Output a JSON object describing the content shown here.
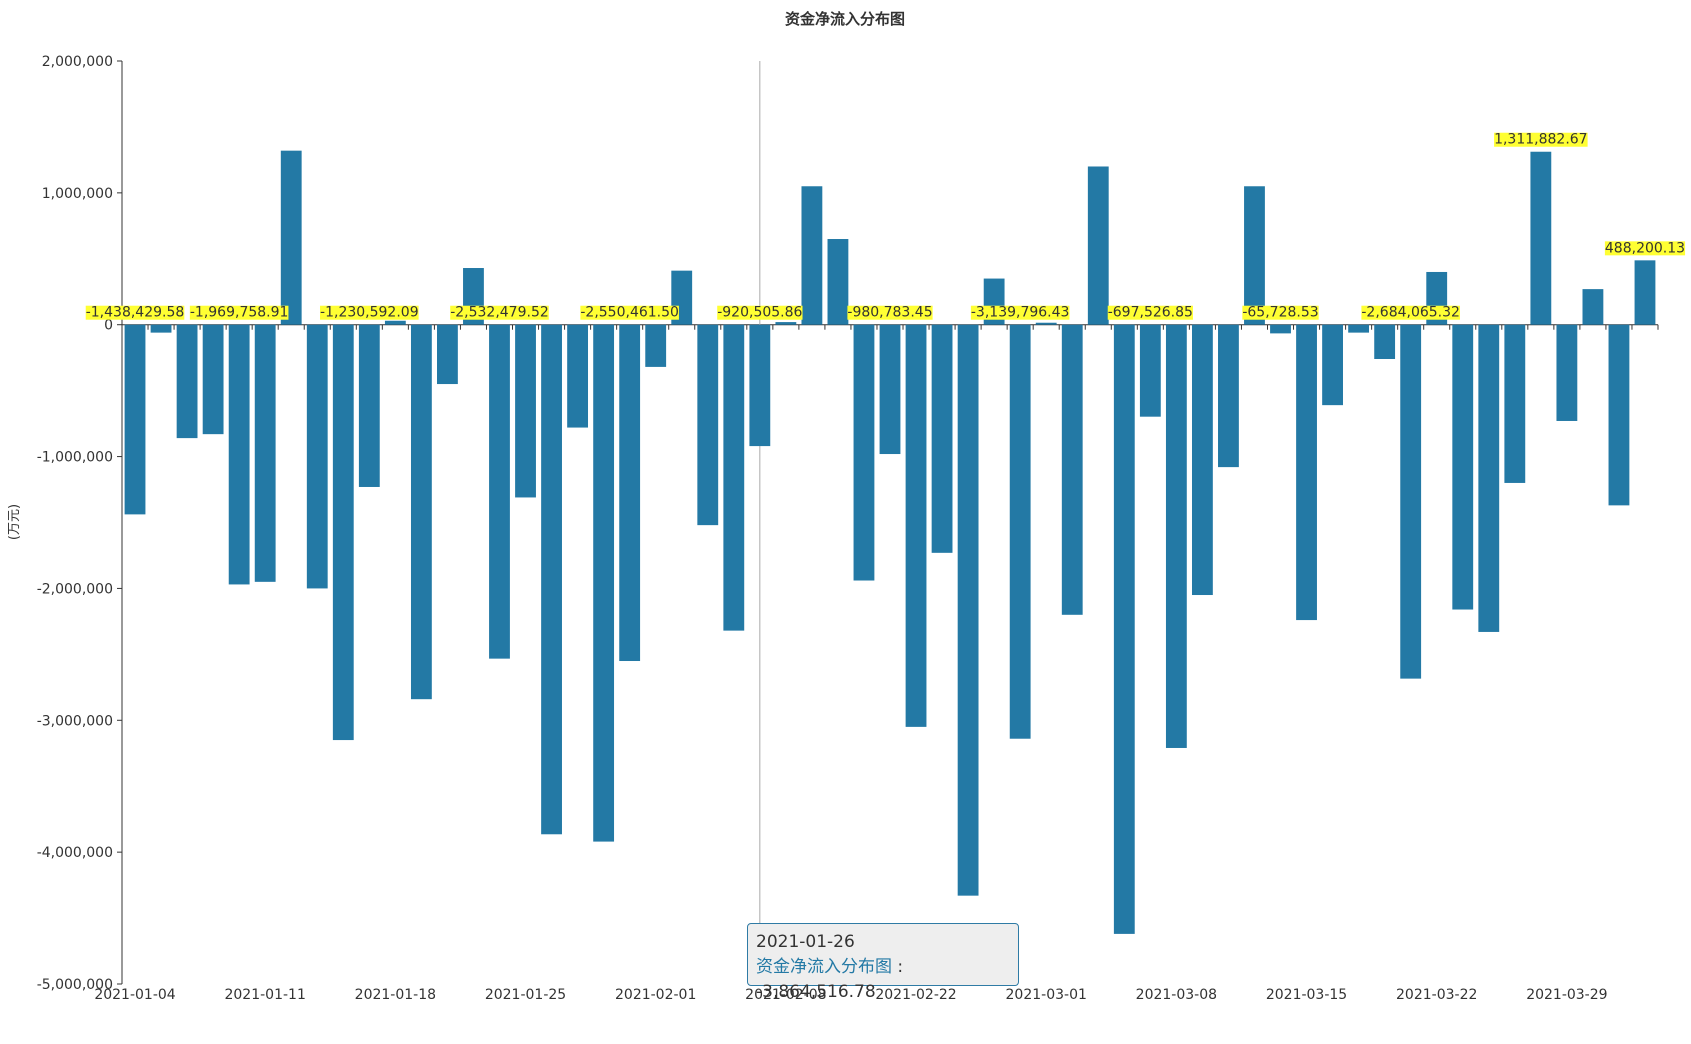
{
  "chart_data": {
    "type": "bar",
    "title": "资金净流入分布图",
    "ylabel": "(万元)",
    "xlabel": "",
    "ylim": [
      -5000000,
      2000000
    ],
    "yticks": [
      2000000,
      1000000,
      0,
      -1000000,
      -2000000,
      -3000000,
      -4000000,
      -5000000
    ],
    "ytick_labels": [
      "2,000,000",
      "1,000,000",
      "0",
      "-1,000,000",
      "-2,000,000",
      "-3,000,000",
      "-4,000,000",
      "-5,000,000"
    ],
    "xtick_labels": [
      {
        "index": 0,
        "label": "2021-01-04"
      },
      {
        "index": 5,
        "label": "2021-01-11"
      },
      {
        "index": 10,
        "label": "2021-01-18"
      },
      {
        "index": 15,
        "label": "2021-01-25"
      },
      {
        "index": 20,
        "label": "2021-02-01"
      },
      {
        "index": 25,
        "label": "2021-02-08"
      },
      {
        "index": 30,
        "label": "2021-02-22"
      },
      {
        "index": 35,
        "label": "2021-03-01"
      },
      {
        "index": 40,
        "label": "2021-03-08"
      },
      {
        "index": 45,
        "label": "2021-03-15"
      },
      {
        "index": 50,
        "label": "2021-03-22"
      },
      {
        "index": 55,
        "label": "2021-03-29"
      }
    ],
    "values": [
      -1438429.58,
      -60000,
      -860000,
      -830000,
      -1969758.91,
      -1950000,
      1320000,
      -2000000,
      -3150000,
      -1230592.09,
      30000,
      -2840000,
      -450000,
      430000,
      -2532479.52,
      -1310000,
      -3864516.78,
      -780000,
      -3920000,
      -2550461.5,
      -320000,
      410000,
      -1520000,
      -2320000,
      -920505.86,
      20000,
      1050000,
      650000,
      -1940000,
      -980783.45,
      -3050000,
      -1730000,
      -4330000,
      350000,
      -3139796.43,
      15000,
      -2200000,
      1200000,
      -4620000,
      -697526.85,
      -3210000,
      -2050000,
      -1080000,
      1050000,
      -65728.53,
      -2240000,
      -610000,
      -60000,
      -260000,
      -2684065.32,
      400000,
      -2160000,
      -2330000,
      -1200000,
      1311882.67,
      -730000,
      270000,
      -1370000,
      488200.13
    ],
    "data_labels": [
      {
        "index": 0,
        "text": "-1,438,429.58"
      },
      {
        "index": 4,
        "text": "-1,969,758.91"
      },
      {
        "index": 9,
        "text": "-1,230,592.09"
      },
      {
        "index": 14,
        "text": "-2,532,479.52"
      },
      {
        "index": 19,
        "text": "-2,550,461.50"
      },
      {
        "index": 24,
        "text": "-920,505.86"
      },
      {
        "index": 29,
        "text": "-980,783.45"
      },
      {
        "index": 34,
        "text": "-3,139,796.43"
      },
      {
        "index": 39,
        "text": "-697,526.85"
      },
      {
        "index": 44,
        "text": "-65,728.53"
      },
      {
        "index": 49,
        "text": "-2,684,065.32"
      },
      {
        "index": 54,
        "text": "1,311,882.67"
      },
      {
        "index": 58,
        "text": "488,200.13"
      }
    ],
    "highlighted_index": 16,
    "pointer_index": 24,
    "tooltip": {
      "date": "2021-01-26",
      "series": "资金净流入分布图",
      "value": "-3,864,516.78"
    },
    "colors": {
      "bar": "#2379a5",
      "bar_highlight": "#2a8abb",
      "label_bg": "#ffff33"
    }
  }
}
